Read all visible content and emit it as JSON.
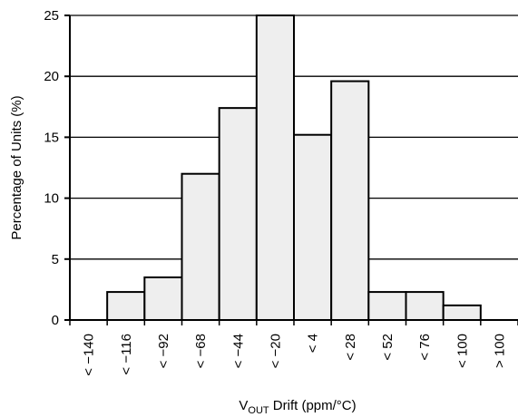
{
  "chart_data": {
    "type": "bar",
    "title": "",
    "xlabel": "V_OUT Drift (ppm/°C)",
    "xlabel_main": "V",
    "xlabel_sub": "OUT",
    "xlabel_rest": " Drift (ppm/°C)",
    "ylabel": "Percentage of Units (%)",
    "ylim": [
      0,
      25
    ],
    "yticks": [
      "0",
      "5",
      "10",
      "15",
      "20",
      "25"
    ],
    "grid": "horizontal",
    "categories": [
      "< −140",
      "< −116",
      "< −92",
      "< −68",
      "< −44",
      "< −20",
      "< 4",
      "< 28",
      "< 52",
      "< 76",
      "< 100",
      "> 100"
    ],
    "values": [
      0,
      2.3,
      3.5,
      12.0,
      17.4,
      25.0,
      15.2,
      19.6,
      2.3,
      2.3,
      1.2,
      0
    ],
    "bar_fill": "#eeeeee",
    "bar_stroke": "#000000"
  }
}
